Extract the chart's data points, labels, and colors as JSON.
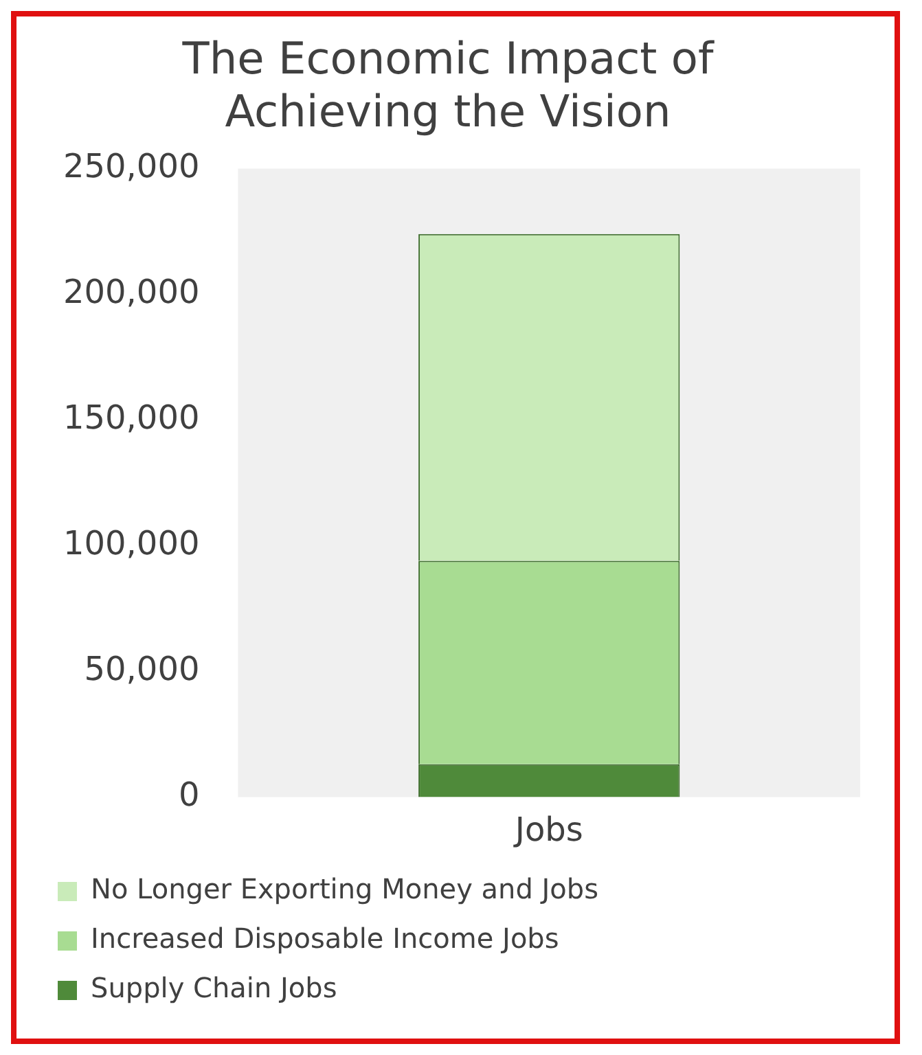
{
  "chart_data": {
    "type": "bar",
    "title": "The Economic Impact of Achieving the Vision",
    "categories": [
      "Jobs"
    ],
    "stacked": true,
    "series": [
      {
        "name": "Supply Chain Jobs",
        "color": "#4f8a3a",
        "values": [
          13000
        ]
      },
      {
        "name": "Increased Disposable Income Jobs",
        "color": "#a8dc92",
        "values": [
          81000
        ]
      },
      {
        "name": "No Longer Exporting Money and Jobs",
        "color": "#c9ebb9",
        "values": [
          130000
        ]
      }
    ],
    "ylim": [
      0,
      250000
    ],
    "yticks": [
      0,
      {
        "value": 50000,
        "label": "50,000"
      },
      {
        "value": 100000,
        "label": "100,000"
      },
      {
        "value": 150000,
        "label": "150,000"
      },
      {
        "value": 200000,
        "label": "200,000"
      },
      {
        "value": 250000,
        "label": "250,000"
      }
    ],
    "grid": false,
    "legend": "bottom"
  }
}
